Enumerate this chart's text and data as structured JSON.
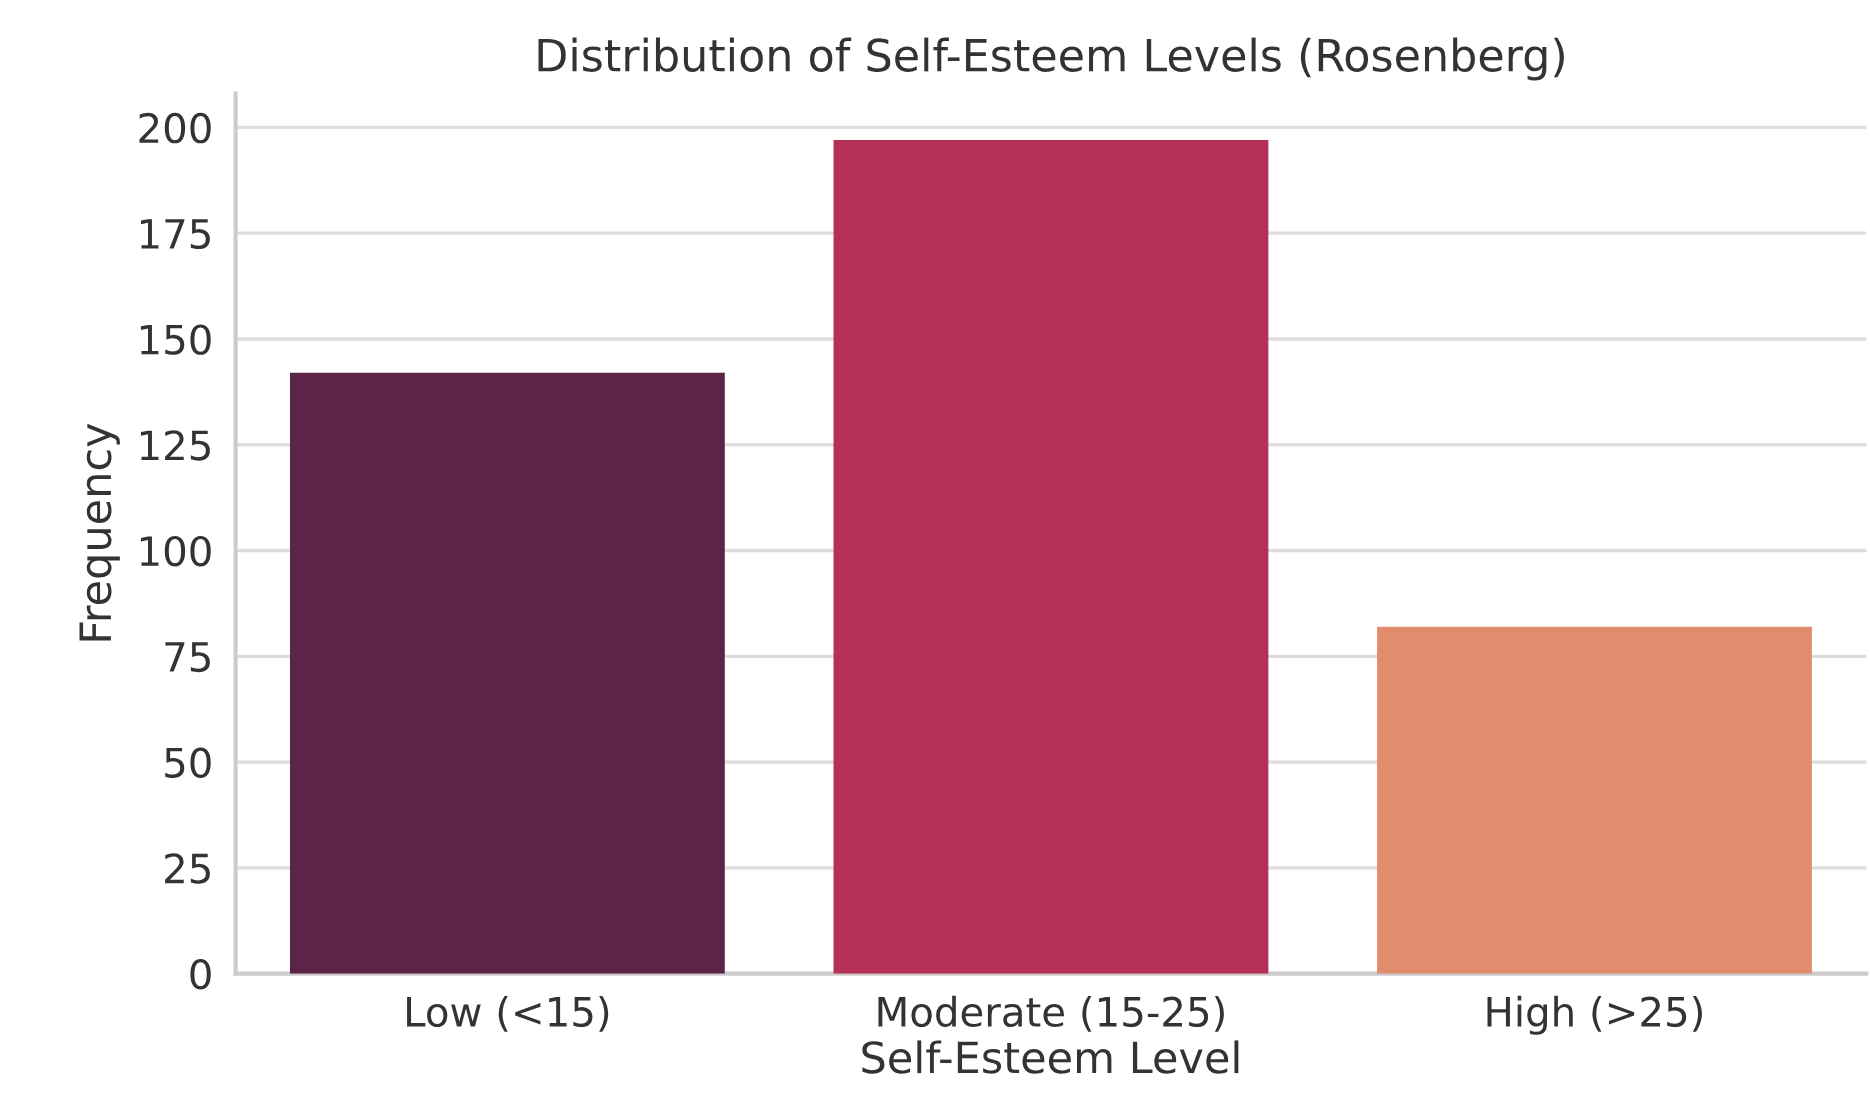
{
  "chart_data": {
    "type": "bar",
    "title": "Distribution of Self-Esteem Levels (Rosenberg)",
    "xlabel": "Self-Esteem Level",
    "ylabel": "Frequency",
    "categories": [
      "Low (<15)",
      "Moderate (15-25)",
      "High (>25)"
    ],
    "values": [
      142,
      197,
      82
    ],
    "colors": [
      "#5b2448",
      "#b43056",
      "#e28c6e"
    ],
    "ylim": [
      0,
      208
    ],
    "yticks": [
      0,
      25,
      50,
      75,
      100,
      125,
      150,
      175,
      200
    ],
    "grid": "y"
  }
}
